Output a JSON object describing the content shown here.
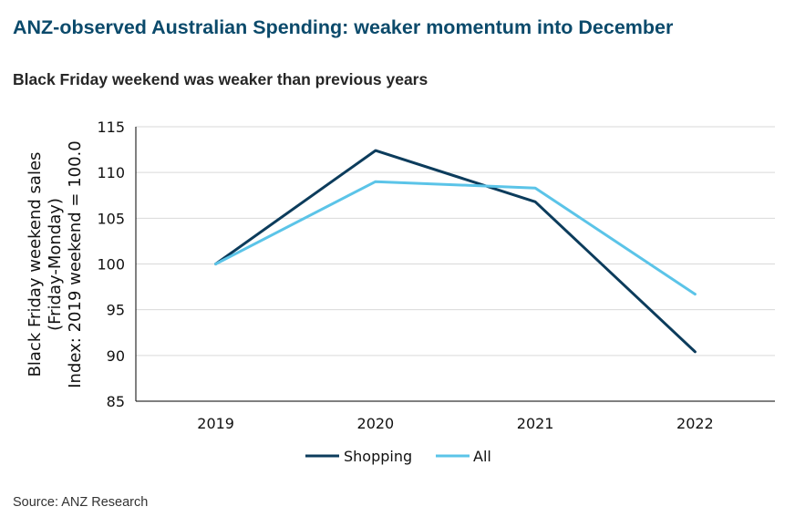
{
  "title": "ANZ-observed Australian Spending: weaker momentum into December",
  "subtitle": "Black Friday weekend was weaker than previous years",
  "source": "Source: ANZ Research",
  "colors": {
    "title": "#0b4a6b",
    "shopping": "#0c3c5c",
    "all": "#5bc4e8",
    "grid": "#d9d9d9",
    "axis": "#000000"
  },
  "chart_data": {
    "type": "line",
    "title": "Black Friday weekend was weaker than previous years",
    "categories": [
      "2019",
      "2020",
      "2021",
      "2022"
    ],
    "series": [
      {
        "name": "Shopping",
        "values": [
          100.0,
          112.4,
          106.8,
          90.4
        ]
      },
      {
        "name": "All",
        "values": [
          100.0,
          109.0,
          108.3,
          96.7
        ]
      }
    ],
    "ylabel_lines": [
      "Black Friday weekend sales",
      "(Friday-Monday)",
      "Index: 2019 weekend = 100.0"
    ],
    "yticks": [
      "85",
      "90",
      "95",
      "100",
      "105",
      "110",
      "115"
    ],
    "ylim": [
      85,
      115
    ],
    "grid": true,
    "legend": "bottom"
  }
}
